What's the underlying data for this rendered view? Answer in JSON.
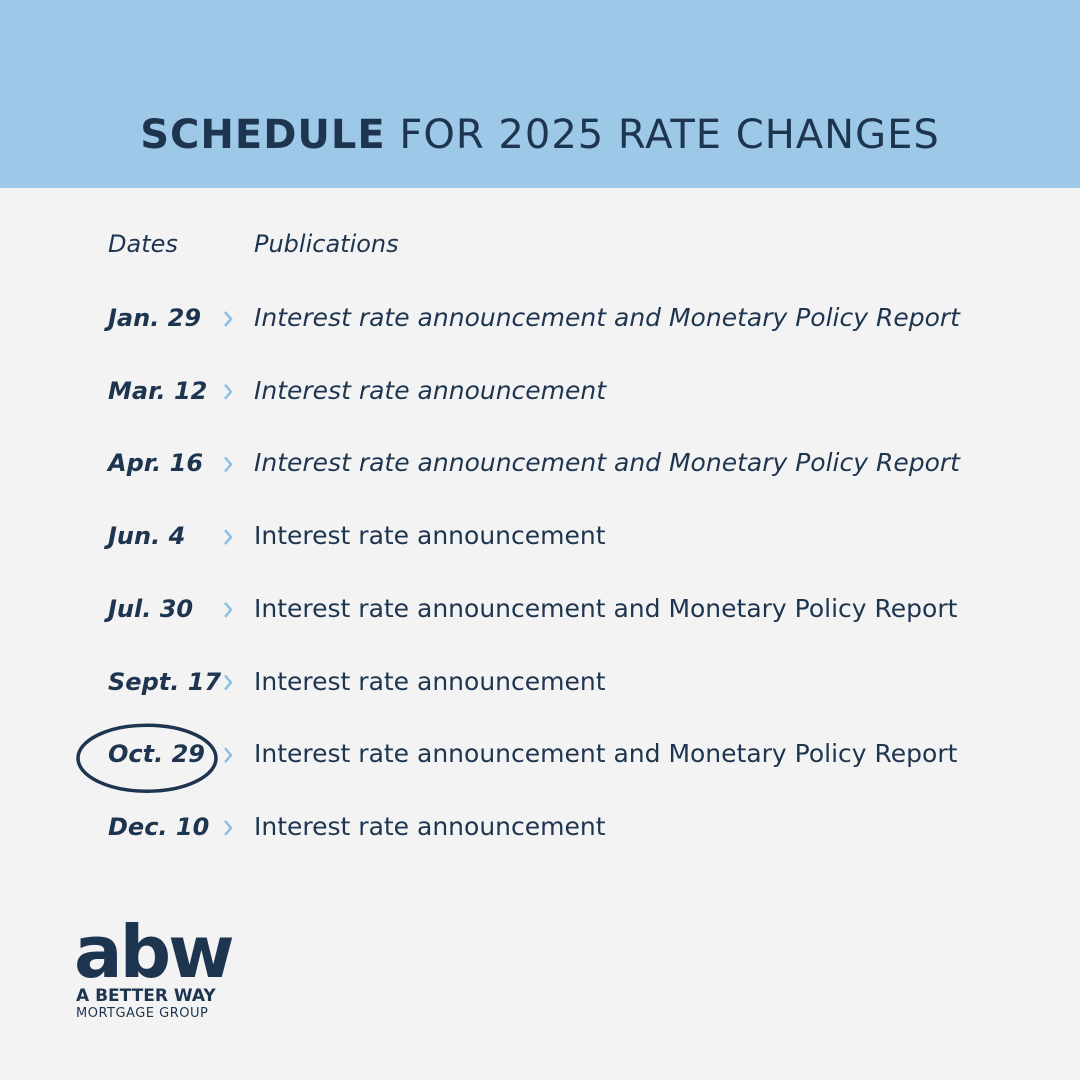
{
  "header": {
    "title_bold": "SCHEDULE",
    "title_rest": "FOR 2025 RATE CHANGES"
  },
  "table": {
    "columns": [
      "Dates",
      "Publications"
    ],
    "rows": [
      {
        "date": "Jan. 29",
        "publication": "Interest rate announcement and Monetary Policy Report",
        "italic": true,
        "circled": false
      },
      {
        "date": "Mar. 12",
        "publication": "Interest rate announcement",
        "italic": true,
        "circled": false
      },
      {
        "date": "Apr. 16",
        "publication": "Interest rate announcement and Monetary Policy Report",
        "italic": true,
        "circled": false
      },
      {
        "date": "Jun. 4",
        "publication": "Interest rate announcement",
        "italic": false,
        "circled": false
      },
      {
        "date": "Jul. 30",
        "publication": "Interest rate announcement and Monetary Policy Report",
        "italic": false,
        "circled": false
      },
      {
        "date": "Sept. 17",
        "publication": "Interest rate announcement",
        "italic": false,
        "circled": false
      },
      {
        "date": "Oct. 29",
        "publication": "Interest rate announcement and Monetary Policy Report",
        "italic": false,
        "circled": true
      },
      {
        "date": "Dec. 10",
        "publication": "Interest rate announcement",
        "italic": false,
        "circled": false
      }
    ]
  },
  "logo": {
    "mark": "abw",
    "line1": "A BETTER WAY",
    "line2": "MORTGAGE GROUP"
  }
}
